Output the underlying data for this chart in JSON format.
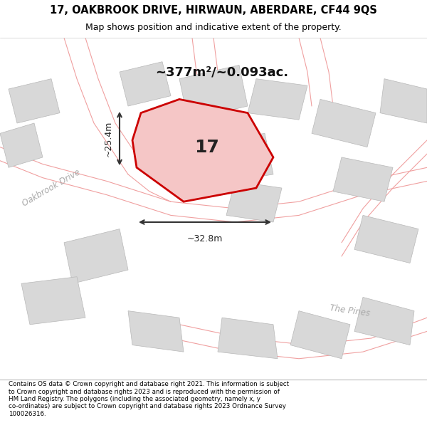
{
  "title_line1": "17, OAKBROOK DRIVE, HIRWAUN, ABERDARE, CF44 9QS",
  "title_line2": "Map shows position and indicative extent of the property.",
  "area_text": "~377m²/~0.093ac.",
  "number_label": "17",
  "dim_width": "~32.8m",
  "dim_height": "~25.4m",
  "road_label1": "Oakbrook Drive",
  "road_label2": "The Pines",
  "footer_text": "Contains OS data © Crown copyright and database right 2021. This information is subject\nto Crown copyright and database rights 2023 and is reproduced with the permission of\nHM Land Registry. The polygons (including the associated geometry, namely x, y\nco-ordinates) are subject to Crown copyright and database rights 2023 Ordnance Survey\n100026316.",
  "map_bg": "#ffffff",
  "plot_color": "#cc0000",
  "plot_fill": "#f5c6c6",
  "road_color": "#f0a0a0",
  "building_color": "#d8d8d8",
  "building_edge": "#b8b8b8",
  "footer_bg": "#ffffff",
  "title_bg": "#ffffff"
}
